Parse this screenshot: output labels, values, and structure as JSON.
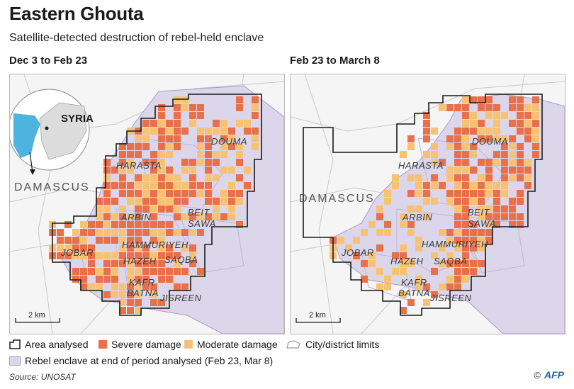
{
  "header": {
    "title": "Eastern Ghouta",
    "subtitle": "Satellite-detected destruction of rebel-held enclave"
  },
  "panels": [
    {
      "title": "Dec 3 to Feb 23"
    },
    {
      "title": "Feb 23 to March 8"
    }
  ],
  "map_labels": {
    "syria": "SYRIA",
    "damascus": "DAMASCUS",
    "douma": "DOUMA",
    "harasta": "HARASTA",
    "arbin": "ARBIN",
    "beit": "BEIT",
    "sawa": "SAWA",
    "jobar": "JOBAR",
    "hammuriyeh": "HAMMURIYEH",
    "hazeh": "HAZEH",
    "saqba": "SAQBA",
    "kafr": "KAFR",
    "batna": "BATNA",
    "jisreen": "JISREEN",
    "scale": "2 km"
  },
  "legend": {
    "area_analysed": "Area analysed",
    "severe": "Severe damage",
    "moderate": "Moderate damage",
    "city_limits": "City/district limits",
    "enclave": "Rebel enclave at end of period analysed (Feb 23, Mar 8)"
  },
  "colors": {
    "severe": "#e8704a",
    "moderate": "#f8c275",
    "enclave_fill": "#dcd6ea",
    "enclave_stroke": "#a89cc8",
    "sea": "#4fb3e0"
  },
  "footer": {
    "source": "Source: UNOSAT",
    "credit": "AFP",
    "copyright": "©"
  }
}
